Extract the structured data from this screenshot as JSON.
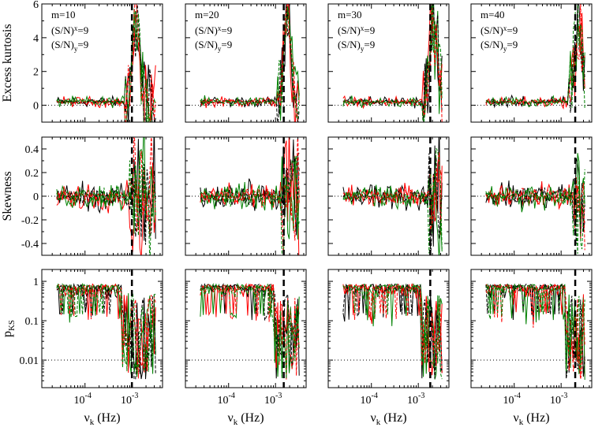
{
  "chart_data": {
    "type": "line",
    "layout": "3x4 panel grid",
    "series_colors": [
      "#000000",
      "#ff0000",
      "#008000"
    ],
    "series_styles": [
      "solid",
      "dashed"
    ],
    "columns": [
      {
        "m_label": "m=10",
        "sn_x_label": "(S/N)",
        "sn_x_sub": "x",
        "sn_x_val": "=9",
        "sn_y_label": "(S/N)",
        "sn_y_sub": "y",
        "sn_y_val": "=9",
        "nu_cut": 0.001
      },
      {
        "m_label": "m=20",
        "sn_x_label": "(S/N)",
        "sn_x_sub": "x",
        "sn_x_val": "=9",
        "sn_y_label": "(S/N)",
        "sn_y_sub": "y",
        "sn_y_val": "=9",
        "nu_cut": 0.0015
      },
      {
        "m_label": "m=30",
        "sn_x_label": "(S/N)",
        "sn_x_sub": "x",
        "sn_x_val": "=9",
        "sn_y_label": "(S/N)",
        "sn_y_sub": "y",
        "sn_y_val": "=9",
        "nu_cut": 0.0018
      },
      {
        "m_label": "m=40",
        "sn_x_label": "(S/N)",
        "sn_x_sub": "x",
        "sn_x_val": "=9",
        "sn_y_label": "(S/N)",
        "sn_y_sub": "y",
        "sn_y_val": "=9",
        "nu_cut": 0.002
      }
    ],
    "rows": [
      {
        "ylabel": "Excess kurtosis",
        "scale": "linear",
        "ylim": [
          -1,
          6
        ],
        "ticks": [
          0,
          2,
          4,
          6
        ],
        "tick_labels": [
          "0",
          "2",
          "4",
          "6"
        ],
        "reference_line": 0
      },
      {
        "ylabel": "Skewness",
        "scale": "linear",
        "ylim": [
          -0.5,
          0.5
        ],
        "ticks": [
          -0.4,
          -0.2,
          0,
          0.2,
          0.4
        ],
        "tick_labels": [
          "-0.4",
          "-0.2",
          "0",
          "0.2",
          "0.4"
        ],
        "reference_line": 0
      },
      {
        "ylabel": "p",
        "ylabel_sub": "KS",
        "scale": "log",
        "ylim": [
          0.002,
          2
        ],
        "ticks": [
          0.01,
          0.1,
          1
        ],
        "tick_labels": [
          "0.01",
          "0.1",
          "1"
        ],
        "reference_line": 0.01
      }
    ],
    "x_axis": {
      "scale": "log",
      "xlim": [
        1.2e-05,
        0.0045
      ],
      "ticks": [
        0.0001,
        0.001
      ],
      "tick_base": "10",
      "tick_exps": [
        "-4",
        "-3"
      ],
      "xlabel": "ν",
      "xlabel_sub": "k",
      "xlabel_unit": " (Hz)"
    }
  }
}
